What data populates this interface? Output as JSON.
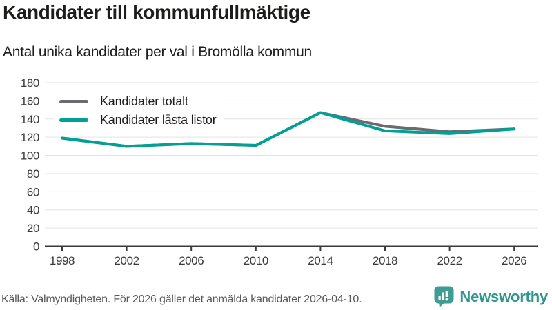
{
  "header": {
    "title": "Kandidater till kommunfullmäktige",
    "subtitle": "Antal unika kandidater per val i Bromölla kommun"
  },
  "chart_data": {
    "type": "line",
    "categories": [
      "1998",
      "2002",
      "2006",
      "2010",
      "2014",
      "2018",
      "2022",
      "2026"
    ],
    "series": [
      {
        "name": "Kandidater totalt",
        "color": "#6A6A71",
        "values": [
          119,
          110,
          113,
          111,
          147,
          132,
          126,
          129
        ]
      },
      {
        "name": "Kandidater låsta listor",
        "color": "#00A096",
        "values": [
          119,
          110,
          113,
          111,
          147,
          127,
          124,
          129
        ]
      }
    ],
    "title": "Kandidater till kommunfullmäktige",
    "subtitle": "Antal unika kandidater per val i Bromölla kommun",
    "xlabel": "",
    "ylabel": "",
    "ylim": [
      0,
      180
    ],
    "ytick_step": 20,
    "grid": true,
    "legend_position": "top-left"
  },
  "footer": {
    "source": "Källa: Valmyndigheten. För 2026 gäller det anmälda kandidater 2026-04-10.",
    "brand": "Newsworthy"
  },
  "colors": {
    "accent_teal": "#00A096",
    "gray_series": "#6A6A71",
    "brand_teal": "#2F968E",
    "logo_teal": "#3F9C94",
    "axis": "#3A3A3A",
    "grid": "#E3E3E3",
    "text": "#1D1D1B",
    "muted": "#595959"
  }
}
